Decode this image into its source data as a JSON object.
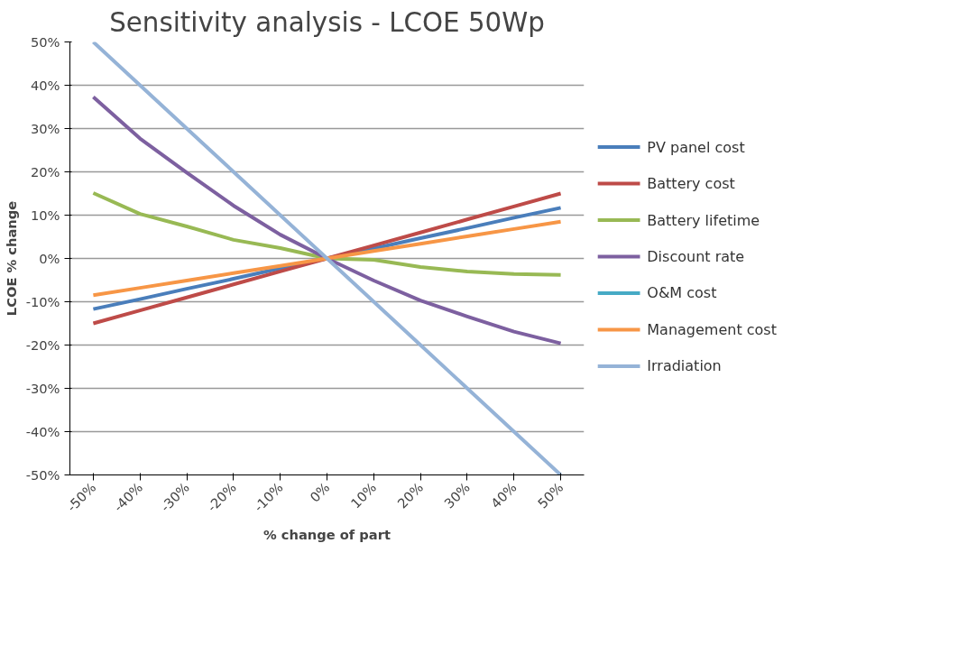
{
  "chart_data": {
    "type": "line",
    "title": "Sensitivity analysis - LCOE 50Wp",
    "xlabel": "% change of part",
    "ylabel": "LCOE % change",
    "categories": [
      "-50%",
      "-40%",
      "-30%",
      "-20%",
      "-10%",
      "0%",
      "10%",
      "20%",
      "30%",
      "40%",
      "50%"
    ],
    "ylim": [
      -50,
      50
    ],
    "yticks": [
      {
        "value": -50,
        "label": "-50%"
      },
      {
        "value": -40,
        "label": "-40%"
      },
      {
        "value": -30,
        "label": "-30%"
      },
      {
        "value": -20,
        "label": "-20%"
      },
      {
        "value": -10,
        "label": "-10%"
      },
      {
        "value": 0,
        "label": "0%"
      },
      {
        "value": 10,
        "label": "10%"
      },
      {
        "value": 20,
        "label": "20%"
      },
      {
        "value": 30,
        "label": "30%"
      },
      {
        "value": 40,
        "label": "40%"
      },
      {
        "value": 50,
        "label": "50%"
      }
    ],
    "grid": "y",
    "legend": "right",
    "marker": "none",
    "line_style": "solid",
    "series": [
      {
        "name": "PV panel cost",
        "color": "#4a7ebb",
        "values": [
          -11.7,
          -9.4,
          -7,
          -4.7,
          -2.3,
          0,
          2.3,
          4.7,
          7,
          9.4,
          11.7
        ]
      },
      {
        "name": "Battery cost",
        "color": "#be4b48",
        "values": [
          -15,
          -12,
          -9,
          -6,
          -3,
          0,
          3,
          6,
          9,
          12,
          15
        ]
      },
      {
        "name": "Battery lifetime",
        "color": "#98b954",
        "values": [
          15.1,
          10.3,
          7.4,
          4.3,
          2.4,
          0,
          -0.3,
          -2,
          -3,
          -3.6,
          -3.8
        ]
      },
      {
        "name": "Discount rate",
        "color": "#7d60a0",
        "values": [
          37.3,
          27.7,
          19.8,
          12.2,
          5.5,
          0,
          -5.1,
          -9.7,
          -13.4,
          -16.9,
          -19.6
        ]
      },
      {
        "name": "O&M cost",
        "color": "#46aac5",
        "values": [
          null,
          null,
          null,
          null,
          null,
          null,
          null,
          null,
          null,
          null,
          null
        ]
      },
      {
        "name": "Management cost",
        "color": "#f79646",
        "values": [
          -8.5,
          -6.8,
          -5.1,
          -3.4,
          -1.7,
          0,
          1.7,
          3.4,
          5.1,
          6.8,
          8.5
        ]
      },
      {
        "name": "Irradiation",
        "color": "#95b3d7",
        "values": [
          50,
          40,
          30,
          20,
          10,
          0,
          -10,
          -20,
          -30,
          -40,
          -50
        ]
      }
    ]
  }
}
